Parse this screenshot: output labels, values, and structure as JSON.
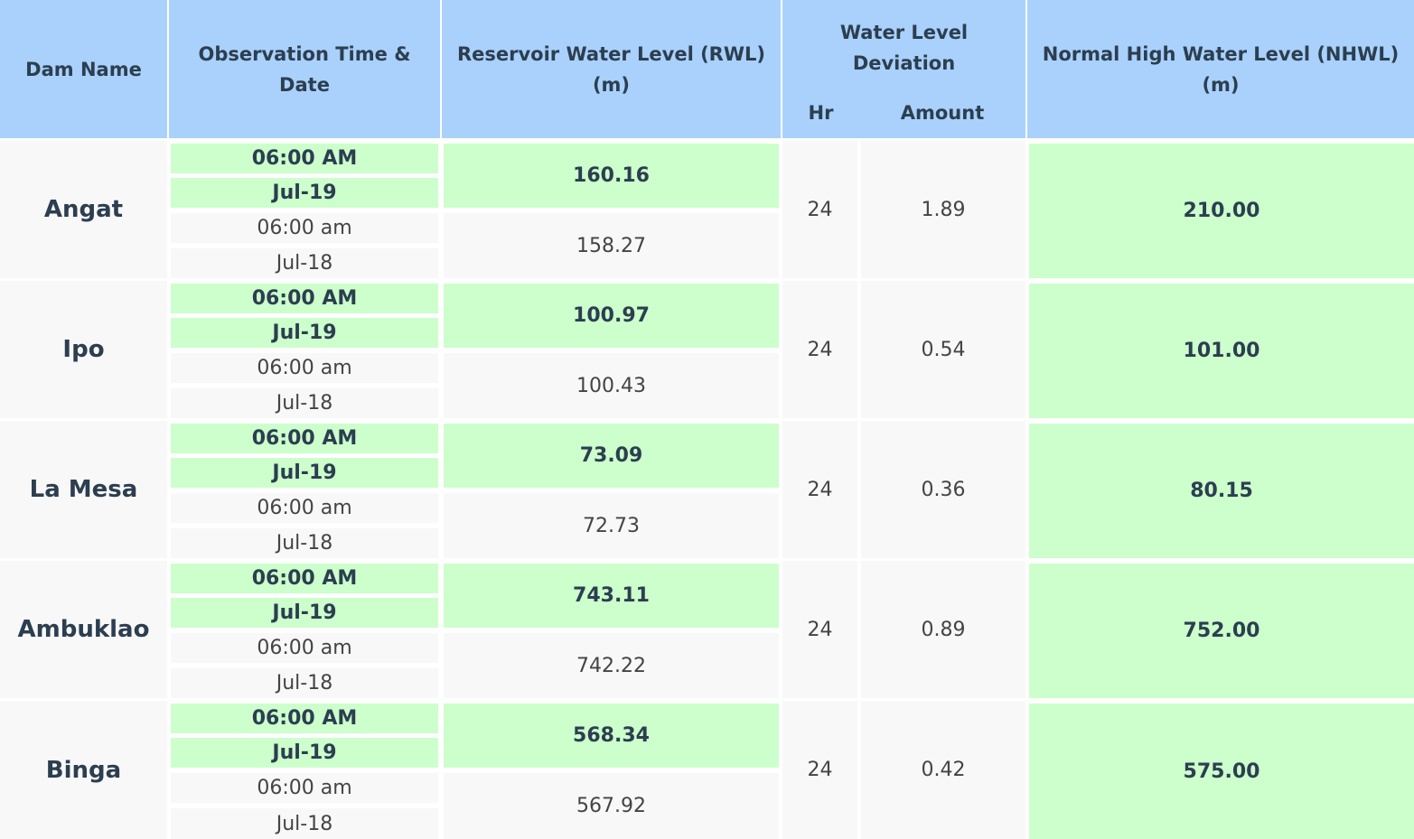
{
  "headers": {
    "dam_name": "Dam Name",
    "observation": "Observation Time & Date",
    "rwl": "Reservoir Water Level (RWL) (m)",
    "deviation": "Water Level Deviation",
    "deviation_hr": "Hr",
    "deviation_amount": "Amount",
    "nhwl": "Normal High Water Level (NHWL) (m)"
  },
  "rows": [
    {
      "dam": "Angat",
      "cur_time": "06:00 AM",
      "cur_date": "Jul-19",
      "prev_time": "06:00 am",
      "prev_date": "Jul-18",
      "cur_rwl": "160.16",
      "prev_rwl": "158.27",
      "hr": "24",
      "amount": "1.89",
      "nhwl": "210.00"
    },
    {
      "dam": "Ipo",
      "cur_time": "06:00 AM",
      "cur_date": "Jul-19",
      "prev_time": "06:00 am",
      "prev_date": "Jul-18",
      "cur_rwl": "100.97",
      "prev_rwl": "100.43",
      "hr": "24",
      "amount": "0.54",
      "nhwl": "101.00"
    },
    {
      "dam": "La Mesa",
      "cur_time": "06:00 AM",
      "cur_date": "Jul-19",
      "prev_time": "06:00 am",
      "prev_date": "Jul-18",
      "cur_rwl": "73.09",
      "prev_rwl": "72.73",
      "hr": "24",
      "amount": "0.36",
      "nhwl": "80.15"
    },
    {
      "dam": "Ambuklao",
      "cur_time": "06:00 AM",
      "cur_date": "Jul-19",
      "prev_time": "06:00 am",
      "prev_date": "Jul-18",
      "cur_rwl": "743.11",
      "prev_rwl": "742.22",
      "hr": "24",
      "amount": "0.89",
      "nhwl": "752.00"
    },
    {
      "dam": "Binga",
      "cur_time": "06:00 AM",
      "cur_date": "Jul-19",
      "prev_time": "06:00 am",
      "prev_date": "Jul-18",
      "cur_rwl": "568.34",
      "prev_rwl": "567.92",
      "hr": "24",
      "amount": "0.42",
      "nhwl": "575.00"
    }
  ],
  "colors": {
    "header_bg": "#a9d1fb",
    "current_bg": "#ccffcc",
    "previous_bg": "#f8f8f8",
    "text": "#2c3e50"
  }
}
